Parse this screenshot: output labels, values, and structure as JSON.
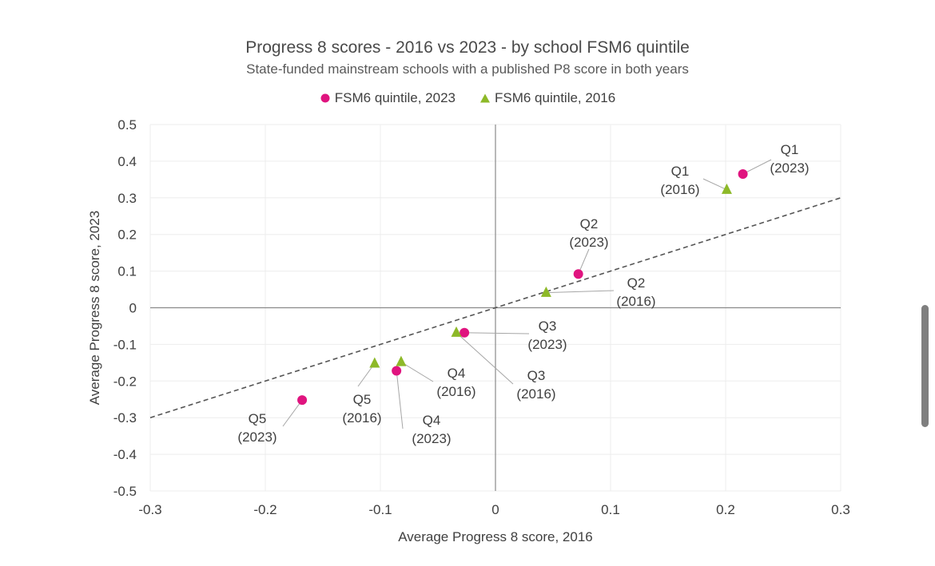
{
  "chart_data": {
    "type": "scatter",
    "title": "Progress 8 scores - 2016 vs 2023 - by school FSM6 quintile",
    "subtitle": "State-funded mainstream schools with a published P8 score in both years",
    "xlabel": "Average Progress 8 score, 2016",
    "ylabel": "Average Progress 8 score, 2023",
    "xlim": [
      -0.3,
      0.3
    ],
    "ylim": [
      -0.5,
      0.5
    ],
    "x_ticks": [
      -0.3,
      -0.2,
      -0.1,
      0,
      0.1,
      0.2,
      0.3
    ],
    "y_ticks": [
      -0.5,
      -0.4,
      -0.3,
      -0.2,
      -0.1,
      0,
      0.1,
      0.2,
      0.3,
      0.4,
      0.5
    ],
    "x_tick_labels": [
      "-0.3",
      "-0.2",
      "-0.1",
      "0",
      "0.1",
      "0.2",
      "0.3"
    ],
    "y_tick_labels": [
      "-0.5",
      "-0.4",
      "-0.3",
      "-0.2",
      "-0.1",
      "0",
      "0.1",
      "0.2",
      "0.3",
      "0.4",
      "0.5"
    ],
    "grid": true,
    "legend_position": "top-center",
    "reference_line": {
      "style": "dashed",
      "points": [
        [
          -0.3,
          -0.3
        ],
        [
          0.3,
          0.3
        ]
      ]
    },
    "series": [
      {
        "name": "FSM6 quintile, 2023",
        "marker": "circle",
        "color": "#E0147F",
        "points": [
          {
            "label": "Q1",
            "sub": "(2023)",
            "x": 0.215,
            "y": 0.365
          },
          {
            "label": "Q2",
            "sub": "(2023)",
            "x": 0.072,
            "y": 0.092
          },
          {
            "label": "Q3",
            "sub": "(2023)",
            "x": -0.027,
            "y": -0.068
          },
          {
            "label": "Q4",
            "sub": "(2023)",
            "x": -0.086,
            "y": -0.172
          },
          {
            "label": "Q5",
            "sub": "(2023)",
            "x": -0.168,
            "y": -0.252
          }
        ]
      },
      {
        "name": "FSM6 quintile, 2016",
        "marker": "triangle",
        "color": "#8DB928",
        "points": [
          {
            "label": "Q1",
            "sub": "(2016)",
            "x": 0.201,
            "y": 0.322
          },
          {
            "label": "Q2",
            "sub": "(2016)",
            "x": 0.044,
            "y": 0.041
          },
          {
            "label": "Q3",
            "sub": "(2016)",
            "x": -0.034,
            "y": -0.068
          },
          {
            "label": "Q4",
            "sub": "(2016)",
            "x": -0.082,
            "y": -0.148
          },
          {
            "label": "Q5",
            "sub": "(2016)",
            "x": -0.105,
            "y": -0.152
          }
        ]
      }
    ]
  }
}
